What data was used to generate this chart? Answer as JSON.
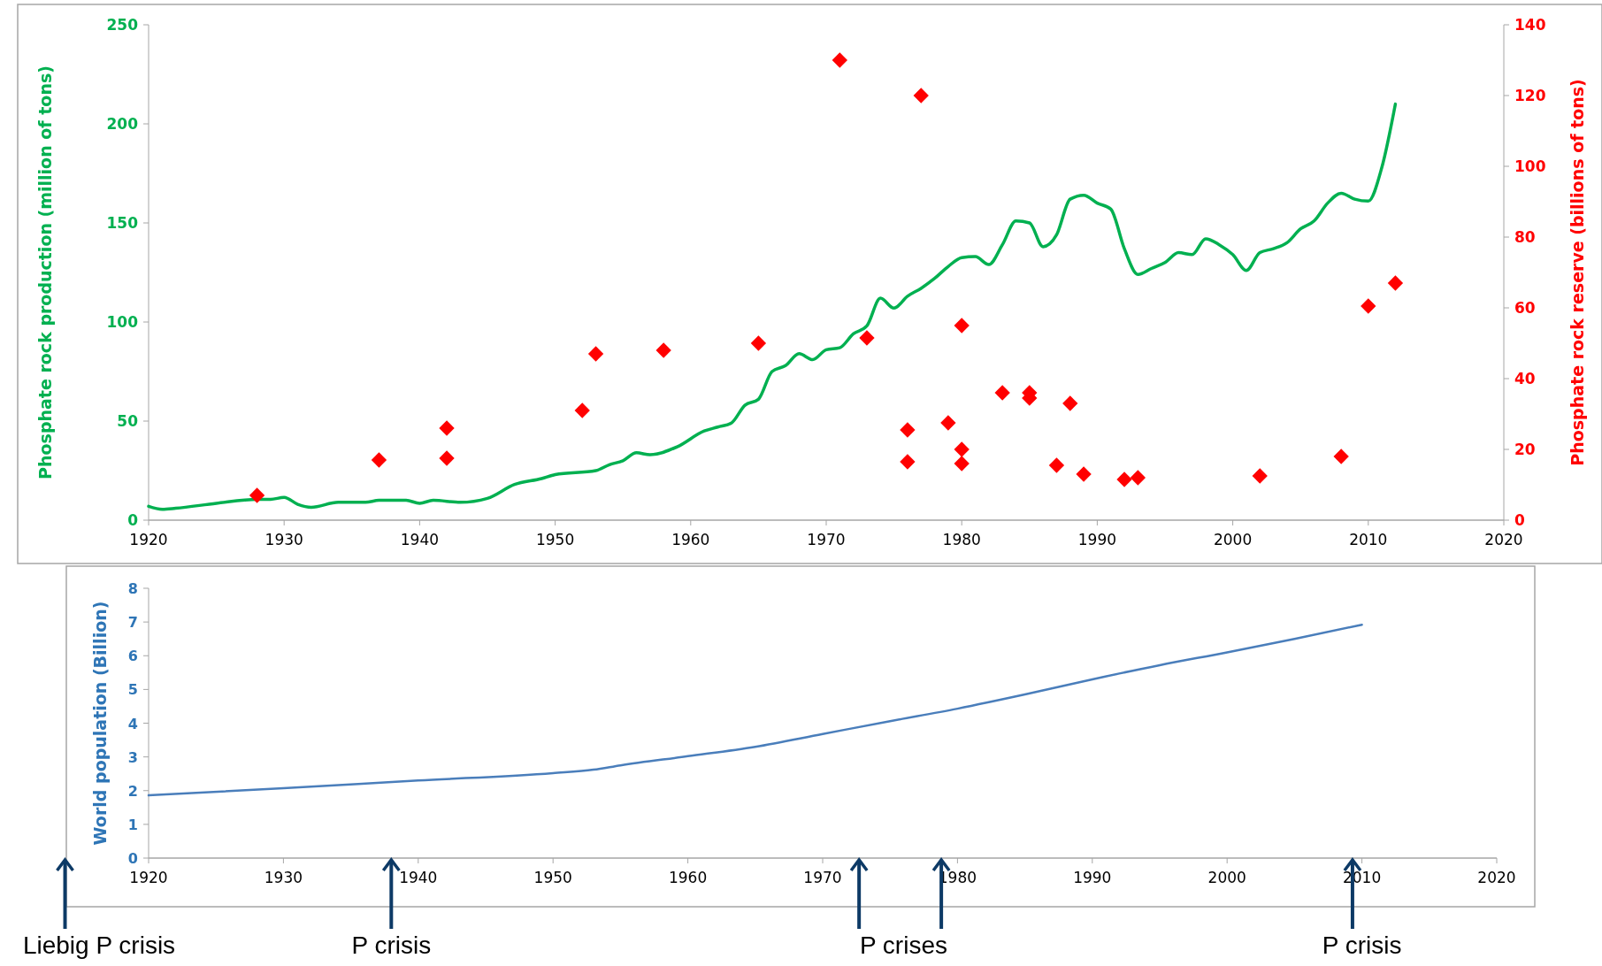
{
  "chart_data": [
    {
      "type": "line",
      "ylabel": "Phosphate rock production (million of tons)",
      "y2label": "Phosphate rock reserve  (billions of tons)",
      "xlim": [
        1920,
        2020
      ],
      "xticks": [
        1920,
        1930,
        1940,
        1950,
        1960,
        1970,
        1980,
        1990,
        2000,
        2010,
        2020
      ],
      "ylim": [
        0,
        250
      ],
      "yticks": [
        0,
        50,
        100,
        150,
        200,
        250
      ],
      "y2lim": [
        0,
        140
      ],
      "y2ticks": [
        0,
        20,
        40,
        60,
        80,
        100,
        120,
        140
      ],
      "grid": false,
      "series": [
        {
          "color": "#00b050",
          "marker": "none",
          "x": [
            1920,
            1921,
            1922,
            1925,
            1928,
            1929,
            1930,
            1931,
            1932,
            1934,
            1936,
            1937,
            1939,
            1940,
            1941,
            1943,
            1945,
            1947,
            1949,
            1950,
            1953,
            1954,
            1955,
            1956,
            1957,
            1959,
            1961,
            1962,
            1963,
            1964,
            1965,
            1966,
            1967,
            1968,
            1969,
            1970,
            1971,
            1972,
            1973,
            1974,
            1975,
            1976,
            1977,
            1978,
            1979,
            1980,
            1981,
            1982,
            1983,
            1984,
            1985,
            1986,
            1987,
            1988,
            1989,
            1990,
            1991,
            1992,
            1993,
            1994,
            1995,
            1996,
            1997,
            1998,
            1999,
            2000,
            2001,
            2002,
            2003,
            2004,
            2005,
            2006,
            2007,
            2008,
            2009,
            2010,
            2011,
            2012
          ],
          "values": [
            7,
            5.5,
            6,
            8.5,
            10.5,
            10.5,
            11.5,
            8,
            6.5,
            9,
            9,
            10,
            10,
            8.5,
            10,
            9,
            11,
            18,
            21,
            23,
            25,
            28,
            30,
            34,
            33,
            37,
            45,
            47,
            49,
            58,
            61,
            75,
            78,
            84,
            81,
            86,
            87,
            94,
            98,
            112,
            107,
            113,
            117,
            122,
            128,
            132.5,
            133,
            129,
            139,
            151,
            150,
            138,
            144,
            162,
            164,
            160,
            157,
            137,
            124,
            127,
            130,
            135,
            134,
            142,
            139,
            134,
            126,
            135,
            137,
            140,
            147,
            151,
            160,
            165,
            162,
            161,
            178,
            210
          ]
        },
        {
          "type": "scatter",
          "color": "#ff0000",
          "marker": "diamond",
          "axis": "y2",
          "x": [
            1928,
            1937,
            1942,
            1942,
            1952,
            1953,
            1958,
            1965,
            1971,
            1973,
            1976,
            1976,
            1977,
            1979,
            1980,
            1980,
            1980,
            1983,
            1985,
            1985,
            1987,
            1988,
            1989,
            1992,
            1993,
            2002,
            2008,
            2010,
            2012
          ],
          "values": [
            7,
            17,
            26,
            17.5,
            31,
            47,
            48,
            50,
            130,
            51.5,
            25.5,
            16.5,
            120,
            27.5,
            55,
            20,
            16,
            36,
            36,
            34.5,
            15.5,
            33,
            13,
            11.5,
            12,
            12.5,
            18,
            60.5,
            67
          ]
        }
      ]
    },
    {
      "type": "line",
      "ylabel": "World population (Billion)",
      "xlim": [
        1920,
        2020
      ],
      "xticks": [
        1920,
        1930,
        1940,
        1950,
        1960,
        1970,
        1980,
        1990,
        2000,
        2010,
        2020
      ],
      "ylim": [
        0,
        8
      ],
      "yticks": [
        0,
        1,
        2,
        3,
        4,
        5,
        6,
        7,
        8
      ],
      "grid": false,
      "annotations": [
        "Liebig P crisis",
        "P crisis",
        "P crises",
        "P crisis"
      ],
      "series": [
        {
          "color": "#4a7ebb",
          "marker": "none",
          "x": [
            1920,
            1930,
            1940,
            1950,
            1953,
            1955,
            1960,
            1965,
            1970,
            1975,
            1980,
            1985,
            1990,
            1995,
            2000,
            2005,
            2010
          ],
          "values": [
            1.86,
            2.07,
            2.3,
            2.52,
            2.62,
            2.75,
            3.02,
            3.3,
            3.68,
            4.06,
            4.43,
            4.85,
            5.3,
            5.72,
            6.1,
            6.5,
            6.92
          ]
        }
      ]
    }
  ]
}
